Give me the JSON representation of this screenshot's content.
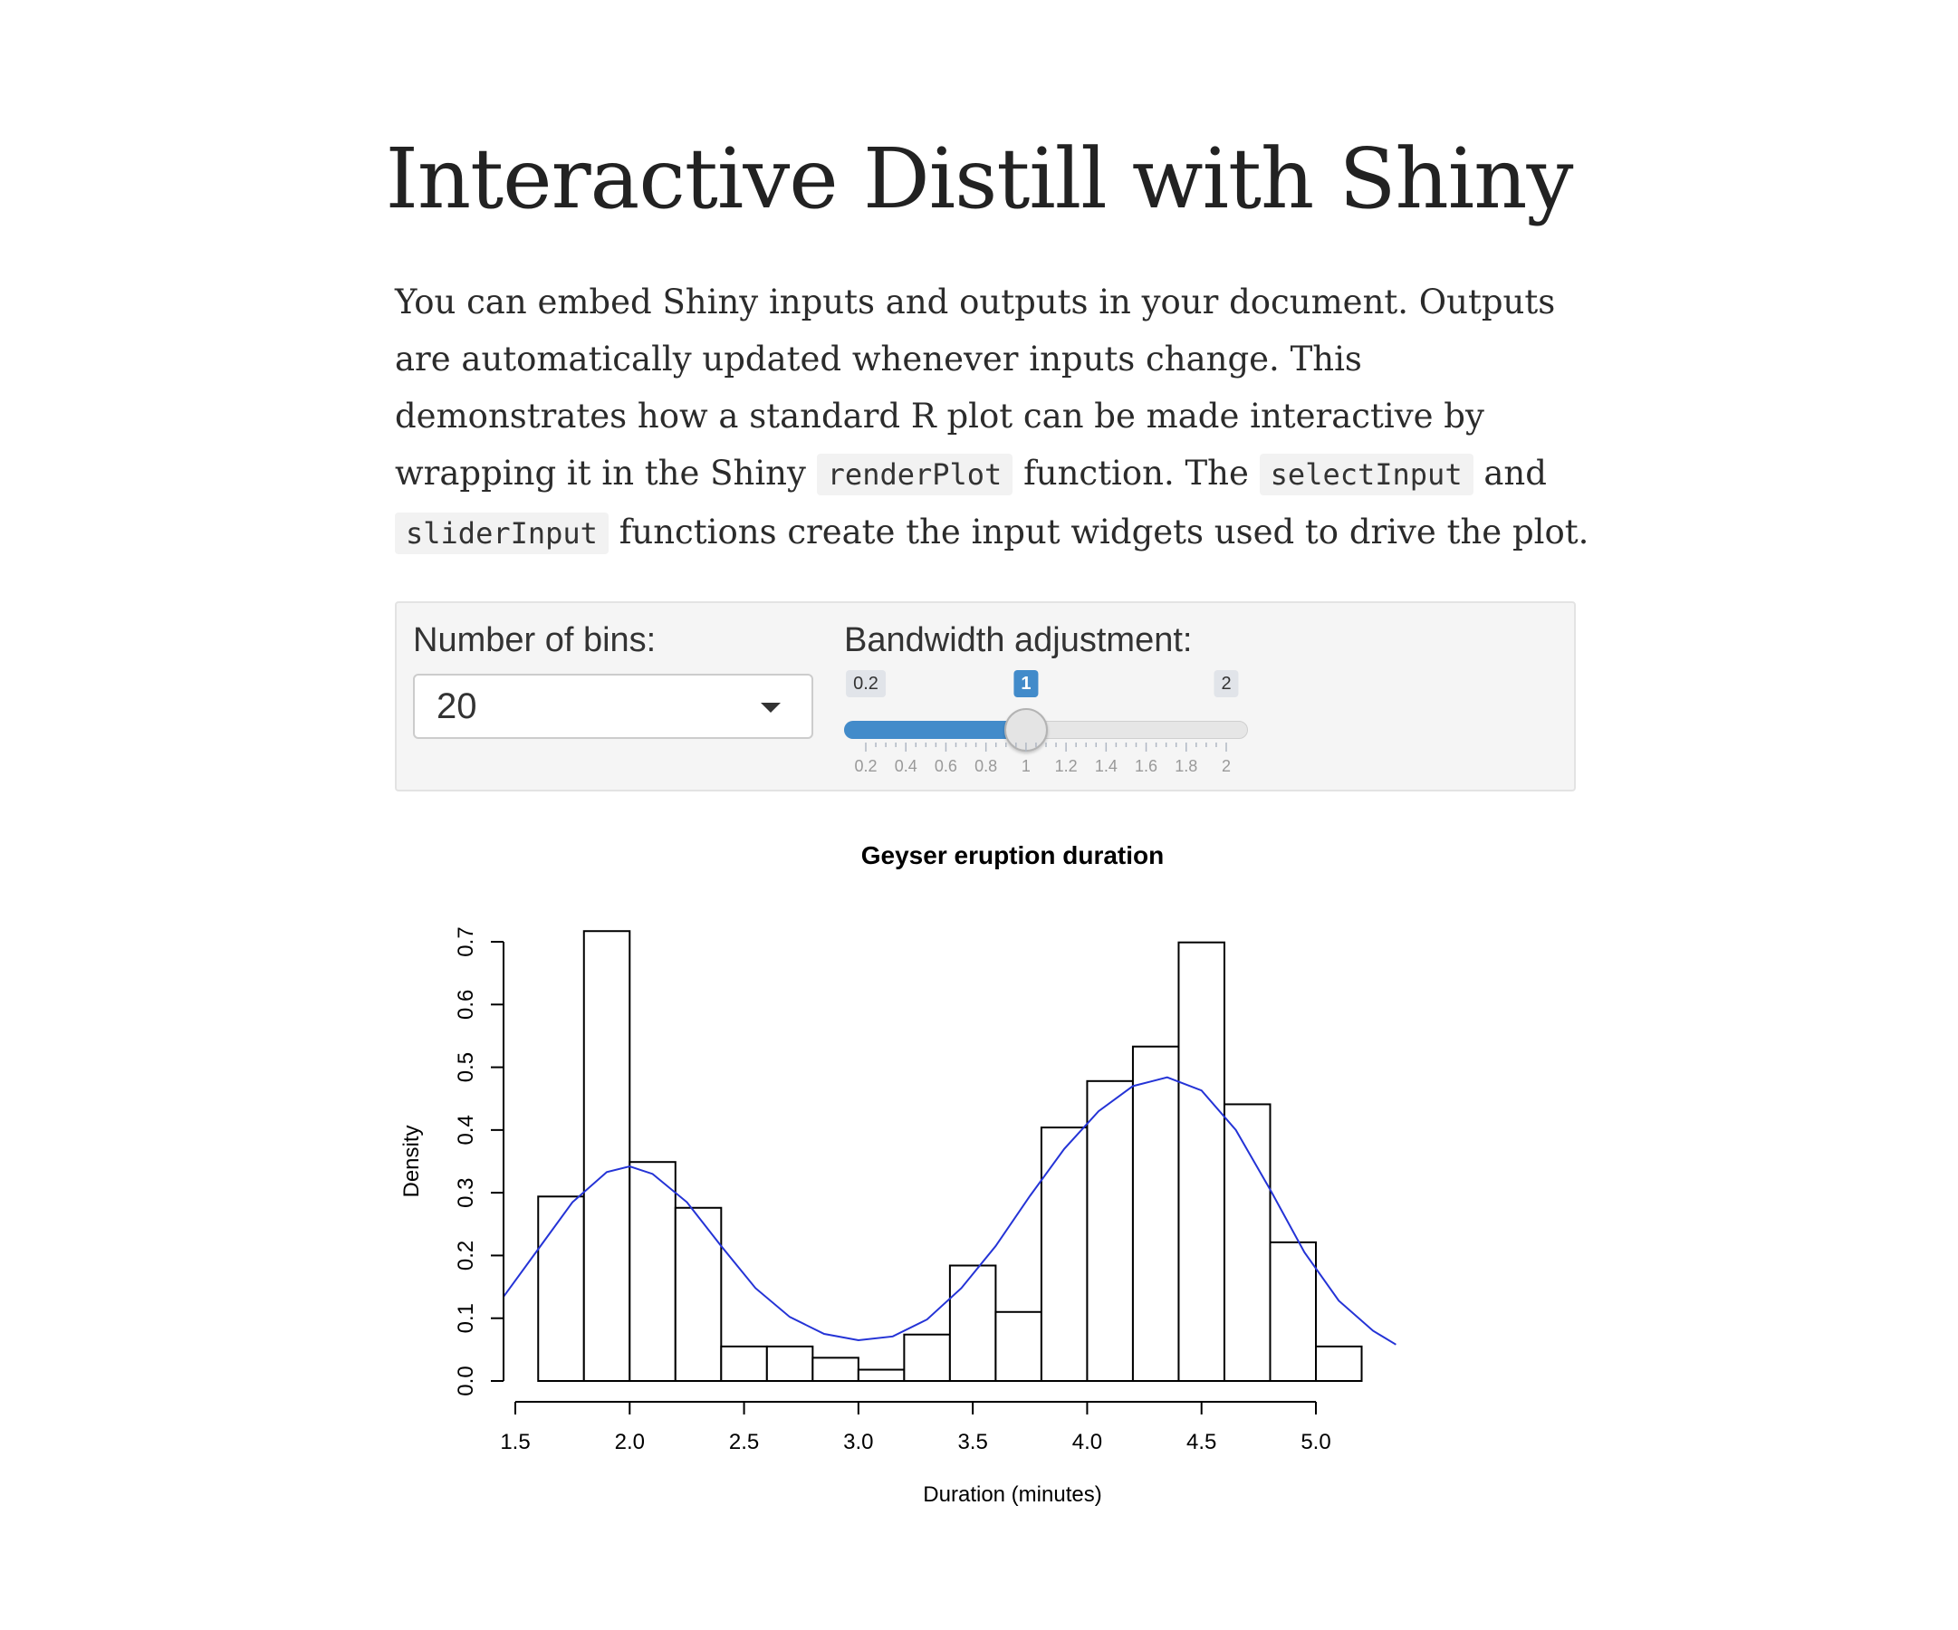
{
  "page": {
    "title": "Interactive Distill with Shiny",
    "intro": {
      "text_1": "You can embed Shiny inputs and outputs in your document. Outputs are automatically updated whenever inputs change. This demonstrates how a standard R plot can be made interactive by wrapping it in the Shiny",
      "code_1": "renderPlot",
      "text_2": "function. The",
      "code_2": "selectInput",
      "text_3": "and",
      "code_3": "sliderInput",
      "text_4": "functions create the input widgets used to drive the plot."
    }
  },
  "controls": {
    "bins": {
      "label": "Number of bins:",
      "selected": "20",
      "icon": "chevron-down-icon"
    },
    "bandwidth": {
      "label": "Bandwidth adjustment:",
      "min": 0.2,
      "max": 2,
      "value": 1,
      "step": 0.2,
      "min_label": "0.2",
      "max_label": "2",
      "value_label": "1",
      "grid_labels": [
        "0.2",
        "0.4",
        "0.6",
        "0.8",
        "1",
        "1.2",
        "1.4",
        "1.6",
        "1.8",
        "2"
      ],
      "fill_color": "#428bca"
    }
  },
  "chart_data": {
    "type": "bar",
    "title": "Geyser eruption duration",
    "xlabel": "Duration (minutes)",
    "ylabel": "Density",
    "xlim": [
      1.5,
      5.0
    ],
    "ylim": [
      0,
      0.7
    ],
    "x_ticks": [
      1.5,
      2.0,
      2.5,
      3.0,
      3.5,
      4.0,
      4.5,
      5.0
    ],
    "x_tick_labels": [
      "1.5",
      "2.0",
      "2.5",
      "3.0",
      "3.5",
      "4.0",
      "4.5",
      "5.0"
    ],
    "y_ticks": [
      0.0,
      0.1,
      0.2,
      0.3,
      0.4,
      0.5,
      0.6,
      0.7
    ],
    "y_tick_labels": [
      "0.0",
      "0.1",
      "0.2",
      "0.3",
      "0.4",
      "0.5",
      "0.6",
      "0.7"
    ],
    "bins": [
      {
        "start": 1.6,
        "end": 1.8,
        "density": 0.294
      },
      {
        "start": 1.8,
        "end": 2.0,
        "density": 0.717
      },
      {
        "start": 2.0,
        "end": 2.2,
        "density": 0.349
      },
      {
        "start": 2.2,
        "end": 2.4,
        "density": 0.276
      },
      {
        "start": 2.4,
        "end": 2.6,
        "density": 0.055
      },
      {
        "start": 2.6,
        "end": 2.8,
        "density": 0.055
      },
      {
        "start": 2.8,
        "end": 3.0,
        "density": 0.037
      },
      {
        "start": 3.0,
        "end": 3.2,
        "density": 0.018
      },
      {
        "start": 3.2,
        "end": 3.4,
        "density": 0.074
      },
      {
        "start": 3.4,
        "end": 3.6,
        "density": 0.184
      },
      {
        "start": 3.6,
        "end": 3.8,
        "density": 0.11
      },
      {
        "start": 3.8,
        "end": 4.0,
        "density": 0.404
      },
      {
        "start": 4.0,
        "end": 4.2,
        "density": 0.478
      },
      {
        "start": 4.2,
        "end": 4.4,
        "density": 0.533
      },
      {
        "start": 4.4,
        "end": 4.6,
        "density": 0.699
      },
      {
        "start": 4.6,
        "end": 4.8,
        "density": 0.441
      },
      {
        "start": 4.8,
        "end": 5.0,
        "density": 0.221
      },
      {
        "start": 5.0,
        "end": 5.2,
        "density": 0.055
      }
    ],
    "density_curve": {
      "color": "#2433d6",
      "points": [
        [
          1.45,
          0.135
        ],
        [
          1.6,
          0.21
        ],
        [
          1.75,
          0.285
        ],
        [
          1.9,
          0.333
        ],
        [
          2.0,
          0.342
        ],
        [
          2.1,
          0.33
        ],
        [
          2.25,
          0.285
        ],
        [
          2.4,
          0.215
        ],
        [
          2.55,
          0.148
        ],
        [
          2.7,
          0.102
        ],
        [
          2.85,
          0.075
        ],
        [
          3.0,
          0.065
        ],
        [
          3.15,
          0.071
        ],
        [
          3.3,
          0.098
        ],
        [
          3.45,
          0.148
        ],
        [
          3.6,
          0.215
        ],
        [
          3.75,
          0.295
        ],
        [
          3.9,
          0.37
        ],
        [
          4.05,
          0.43
        ],
        [
          4.2,
          0.47
        ],
        [
          4.35,
          0.484
        ],
        [
          4.5,
          0.463
        ],
        [
          4.65,
          0.4
        ],
        [
          4.8,
          0.305
        ],
        [
          4.95,
          0.205
        ],
        [
          5.1,
          0.128
        ],
        [
          5.25,
          0.08
        ],
        [
          5.35,
          0.058
        ]
      ]
    },
    "bar_fill": "#ffffff",
    "bar_stroke": "#000000",
    "grid": false,
    "legend": "none"
  }
}
